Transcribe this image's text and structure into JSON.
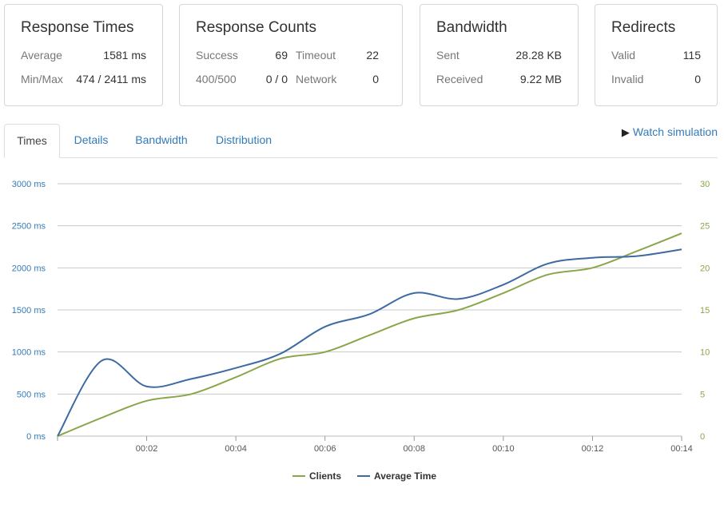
{
  "cards": {
    "response_times": {
      "title": "Response Times",
      "average_label": "Average",
      "average_value": "1581 ms",
      "minmax_label": "Min/Max",
      "minmax_value": "474 / 2411 ms"
    },
    "response_counts": {
      "title": "Response Counts",
      "success_label": "Success",
      "success_value": "69",
      "timeout_label": "Timeout",
      "timeout_value": "22",
      "err_label": "400/500",
      "err_value": "0 / 0",
      "network_label": "Network",
      "network_value": "0"
    },
    "bandwidth": {
      "title": "Bandwidth",
      "sent_label": "Sent",
      "sent_value": "28.28 KB",
      "received_label": "Received",
      "received_value": "9.22 MB"
    },
    "redirects": {
      "title": "Redirects",
      "valid_label": "Valid",
      "valid_value": "115",
      "invalid_label": "Invalid",
      "invalid_value": "0"
    }
  },
  "tabs": [
    "Times",
    "Details",
    "Bandwidth",
    "Distribution"
  ],
  "active_tab": "Times",
  "watch_label": "Watch simulation",
  "chart_data": {
    "type": "line",
    "x_ticks": [
      "00:02",
      "00:04",
      "00:06",
      "00:08",
      "00:10",
      "00:12",
      "00:14"
    ],
    "x_range": [
      0,
      14
    ],
    "left_axis": {
      "ticks": [
        "0 ms",
        "500 ms",
        "1000 ms",
        "1500 ms",
        "2000 ms",
        "2500 ms",
        "3000 ms"
      ],
      "range": [
        0,
        3000
      ]
    },
    "right_axis": {
      "ticks": [
        "0",
        "5",
        "10",
        "15",
        "20",
        "25",
        "30"
      ],
      "range": [
        0,
        30
      ]
    },
    "grid": true,
    "legend_position": "bottom-center",
    "series": [
      {
        "name": "Clients",
        "axis": "right",
        "color": "#8aa64a",
        "x": [
          0,
          1,
          2,
          3,
          4,
          5,
          6,
          7,
          8,
          9,
          10,
          11,
          12,
          13,
          14
        ],
        "values": [
          0,
          2.2,
          4.2,
          5,
          7,
          9.2,
          10,
          12,
          14,
          15,
          17,
          19.2,
          20,
          22,
          24.1
        ]
      },
      {
        "name": "Average Time",
        "axis": "left",
        "color": "#3d6aa0",
        "x": [
          0,
          1,
          2,
          3,
          4,
          5,
          6,
          7,
          8,
          9,
          10,
          11,
          12,
          13,
          14
        ],
        "values": [
          0,
          900,
          590,
          680,
          810,
          980,
          1300,
          1450,
          1700,
          1630,
          1800,
          2050,
          2120,
          2140,
          2220
        ]
      }
    ]
  }
}
